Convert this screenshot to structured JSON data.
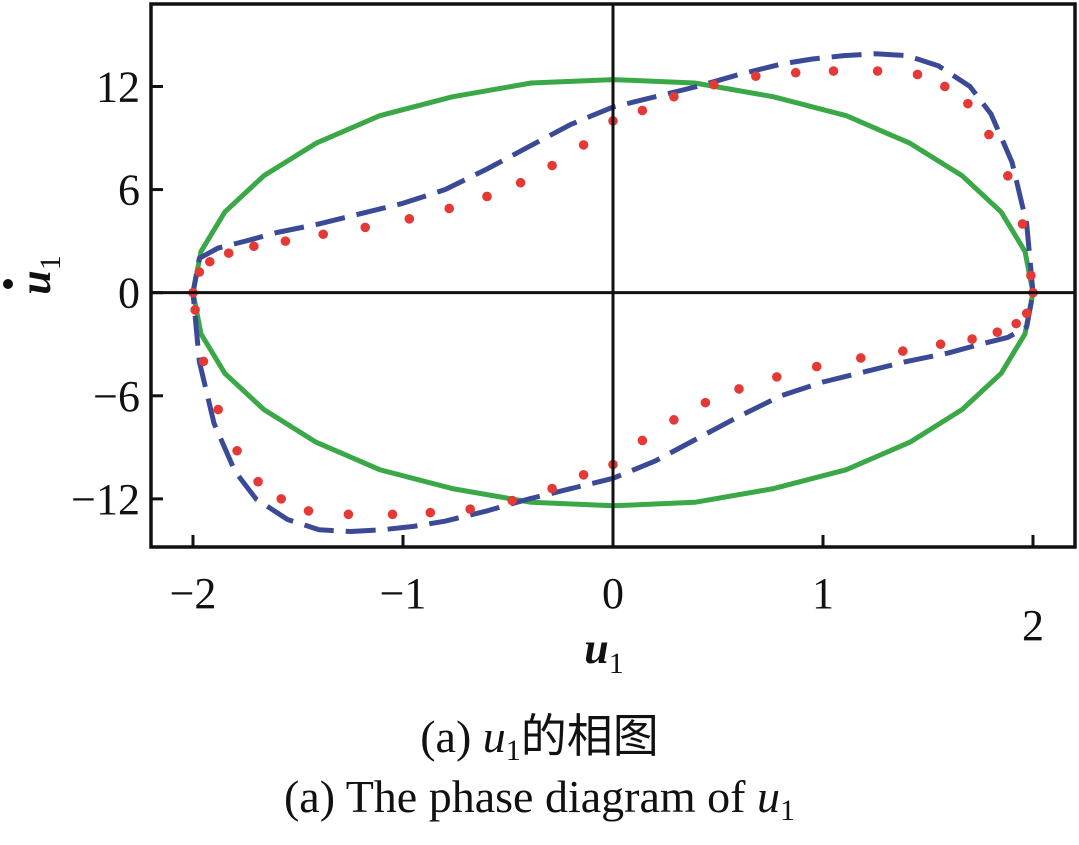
{
  "chart_data": {
    "type": "line",
    "xlabel": "u",
    "xlabel_sub": "1",
    "ylabel": "u",
    "ylabel_sub": "1",
    "ylabel_accent": "dot",
    "xlim": [
      -2.2,
      2.2
    ],
    "ylim": [
      -14.8,
      16.8
    ],
    "x_ticks": [
      -2,
      -1,
      0,
      1,
      2
    ],
    "x_tick_labels": [
      "−2",
      "−1",
      "0",
      "1",
      "2"
    ],
    "y_ticks": [
      -12,
      -6,
      0,
      6,
      12
    ],
    "y_tick_labels": [
      "−12",
      "−6",
      "0",
      "6",
      "12"
    ],
    "reference_lines": {
      "x": 0,
      "y": 0
    },
    "series": [
      {
        "style": "solid",
        "color": "#3aa847",
        "x": [
          2.0,
          1.962,
          1.848,
          1.663,
          1.414,
          1.111,
          0.765,
          0.39,
          0.0,
          -0.39,
          -0.765,
          -1.111,
          -1.414,
          -1.663,
          -1.848,
          -1.962,
          -2.0,
          -1.962,
          -1.848,
          -1.663,
          -1.414,
          -1.111,
          -0.765,
          -0.39,
          0.0,
          0.39,
          0.765,
          1.111,
          1.414,
          1.663,
          1.848,
          1.962,
          2.0
        ],
        "y": [
          0.0,
          2.4,
          4.7,
          6.8,
          8.7,
          10.3,
          11.4,
          12.2,
          12.4,
          12.2,
          11.4,
          10.3,
          8.7,
          6.8,
          4.7,
          2.4,
          0.0,
          -2.4,
          -4.7,
          -6.8,
          -8.7,
          -10.3,
          -11.4,
          -12.2,
          -12.4,
          -12.2,
          -11.4,
          -10.3,
          -8.7,
          -6.8,
          -4.7,
          -2.4,
          0.0
        ]
      },
      {
        "style": "dashed",
        "color": "#3b4a96",
        "x": [
          2.0,
          1.97,
          1.9,
          1.8,
          1.7,
          1.55,
          1.4,
          1.25,
          1.1,
          0.95,
          0.8,
          0.6,
          0.4,
          0.2,
          0.0,
          -0.2,
          -0.4,
          -0.6,
          -0.8,
          -1.0,
          -1.2,
          -1.4,
          -1.6,
          -1.75,
          -1.88,
          -1.97,
          -2.0,
          -1.97,
          -1.9,
          -1.8,
          -1.7,
          -1.55,
          -1.4,
          -1.25,
          -1.1,
          -0.95,
          -0.8,
          -0.6,
          -0.4,
          -0.2,
          0.0,
          0.2,
          0.4,
          0.6,
          0.8,
          1.0,
          1.2,
          1.4,
          1.6,
          1.75,
          1.88,
          1.97,
          2.0
        ],
        "y": [
          0.0,
          4.0,
          7.6,
          10.4,
          12.0,
          13.2,
          13.8,
          13.9,
          13.8,
          13.6,
          13.3,
          12.7,
          12.0,
          11.4,
          10.8,
          9.8,
          8.5,
          7.2,
          6.0,
          5.2,
          4.6,
          4.0,
          3.5,
          3.0,
          2.6,
          2.0,
          0.0,
          -4.0,
          -7.6,
          -10.4,
          -12.0,
          -13.2,
          -13.8,
          -13.9,
          -13.8,
          -13.6,
          -13.3,
          -12.7,
          -12.0,
          -11.4,
          -10.8,
          -9.8,
          -8.5,
          -7.2,
          -6.0,
          -5.2,
          -4.6,
          -4.0,
          -3.5,
          -3.0,
          -2.6,
          -2.0,
          0.0
        ]
      },
      {
        "style": "dotted",
        "color": "#e53935",
        "x": [
          1.99,
          1.95,
          1.88,
          1.79,
          1.69,
          1.58,
          1.45,
          1.26,
          1.05,
          0.87,
          0.68,
          0.48,
          0.29,
          0.14,
          0.0,
          -0.14,
          -0.29,
          -0.44,
          -0.6,
          -0.78,
          -0.97,
          -1.18,
          -1.38,
          -1.56,
          -1.71,
          -1.83,
          -1.92,
          -1.97,
          -2.0,
          -1.99,
          -1.95,
          -1.88,
          -1.79,
          -1.69,
          -1.58,
          -1.45,
          -1.26,
          -1.05,
          -0.87,
          -0.68,
          -0.48,
          -0.29,
          -0.14,
          0.0,
          0.14,
          0.29,
          0.44,
          0.6,
          0.78,
          0.97,
          1.18,
          1.38,
          1.56,
          1.71,
          1.83,
          1.92,
          1.97,
          2.0
        ],
        "y": [
          1.0,
          4.0,
          6.8,
          9.2,
          11.0,
          12.0,
          12.7,
          12.9,
          12.9,
          12.8,
          12.6,
          12.1,
          11.4,
          10.6,
          10.0,
          8.6,
          7.4,
          6.4,
          5.6,
          4.9,
          4.3,
          3.8,
          3.4,
          3.0,
          2.7,
          2.3,
          1.8,
          1.2,
          0.0,
          -1.0,
          -4.0,
          -6.8,
          -9.2,
          -11.0,
          -12.0,
          -12.7,
          -12.9,
          -12.9,
          -12.8,
          -12.6,
          -12.1,
          -11.4,
          -10.6,
          -10.0,
          -8.6,
          -7.4,
          -6.4,
          -5.6,
          -4.9,
          -4.3,
          -3.8,
          -3.4,
          -3.0,
          -2.7,
          -2.3,
          -1.8,
          -1.2,
          0.0
        ]
      }
    ]
  },
  "caption": {
    "zh_prefix": "(a) ",
    "zh_var": "u",
    "zh_var_sub": "1",
    "zh_text": "的相图",
    "en_text": "(a) The phase diagram of ",
    "en_var": "u",
    "en_var_sub": "1"
  }
}
